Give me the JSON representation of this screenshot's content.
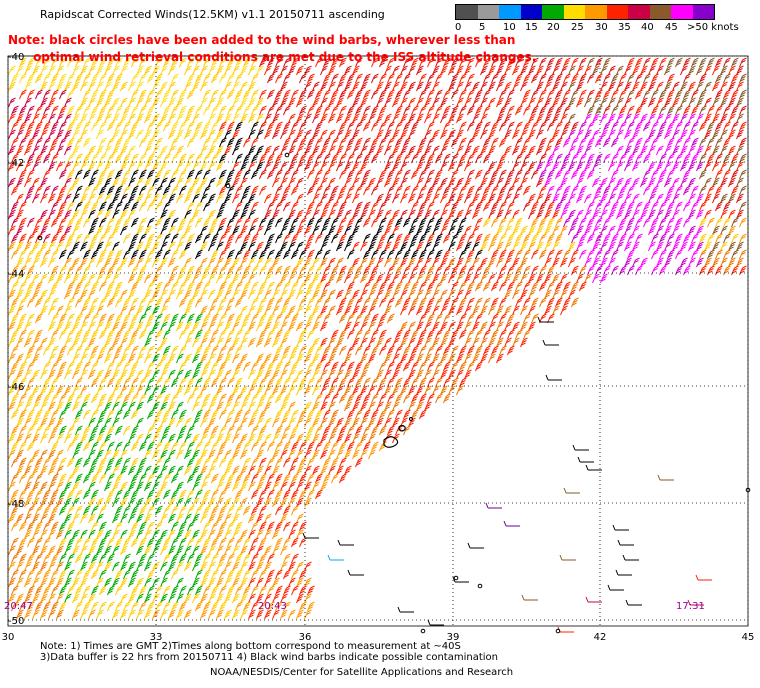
{
  "title": "Rapidscat Corrected Winds(12.5KM) v1.1 20150711 ascending",
  "note_line1": "Note: black circles have been added to the wind barbs, wherever less than",
  "note_line2": "      optimal wind retrieval conditions are met due to the ISS altitude changes.",
  "legend": {
    "labels": [
      "0",
      "5",
      "10",
      "15",
      "20",
      "25",
      "30",
      "35",
      "40",
      "45",
      ">50 knots"
    ],
    "colors": [
      "#505050",
      "#9a9a9a",
      "#0099ff",
      "#0000cc",
      "#00aa00",
      "#ffdd00",
      "#ff9900",
      "#ff2200",
      "#cc0044",
      "#8a5a2a",
      "#ff00ff",
      "#8800cc"
    ]
  },
  "lat_labels": [
    "-40",
    "-42",
    "-44",
    "-46",
    "-48",
    "-50"
  ],
  "lon_labels": [
    "30",
    "33",
    "36",
    "39",
    "42",
    "45"
  ],
  "time_labels": [
    "20:47",
    "20:43",
    "17:31"
  ],
  "footnote_line1": "Note: 1) Times are GMT 2)Times along bottom correspond to measurement at ~40S",
  "footnote_line2": "3)Data buffer is 22 hrs from 20150711 4) Black wind barbs indicate possible contamination",
  "credit": "NOAA/NESDIS/Center for Satellite Applications and Research"
}
